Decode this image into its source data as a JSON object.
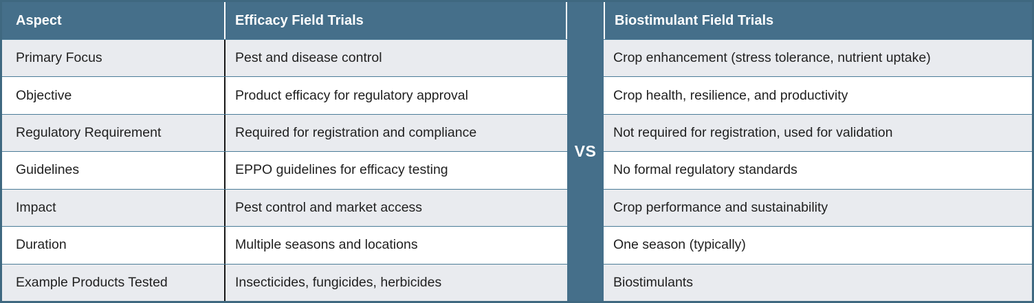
{
  "divider": {
    "label": "VS"
  },
  "left_table": {
    "aspect_header": "Aspect",
    "value_header": "Efficacy Field Trials",
    "rows": [
      {
        "aspect": "Primary Focus",
        "value": "Pest and disease control"
      },
      {
        "aspect": "Objective",
        "value": "Product efficacy for regulatory approval"
      },
      {
        "aspect": "Regulatory Requirement",
        "value": "Required for registration and compliance"
      },
      {
        "aspect": "Guidelines",
        "value": "EPPO guidelines for efficacy testing"
      },
      {
        "aspect": "Impact",
        "value": "Pest control and market access"
      },
      {
        "aspect": "Duration",
        "value": "Multiple seasons and locations"
      },
      {
        "aspect": "Example Products Tested",
        "value": "Insecticides, fungicides, herbicides"
      }
    ]
  },
  "right_table": {
    "header": "Biostimulant Field Trials",
    "rows": [
      "Crop enhancement (stress tolerance, nutrient uptake)",
      "Crop health, resilience, and productivity",
      "Not required for registration, used for validation",
      "No formal regulatory standards",
      "Crop performance and sustainability",
      "One season (typically)",
      "Biostimulants"
    ]
  },
  "colors": {
    "header_bg": "#456F8A",
    "vs_band_bg": "#456F8A",
    "row_alt_bg": "#E9EBEF",
    "row_bg": "#FFFFFF",
    "row_border": "#4A7B97",
    "column_divider": "#161616",
    "outer_border": "#3F6880",
    "header_text": "#FFFFFF",
    "body_text": "#212121"
  }
}
